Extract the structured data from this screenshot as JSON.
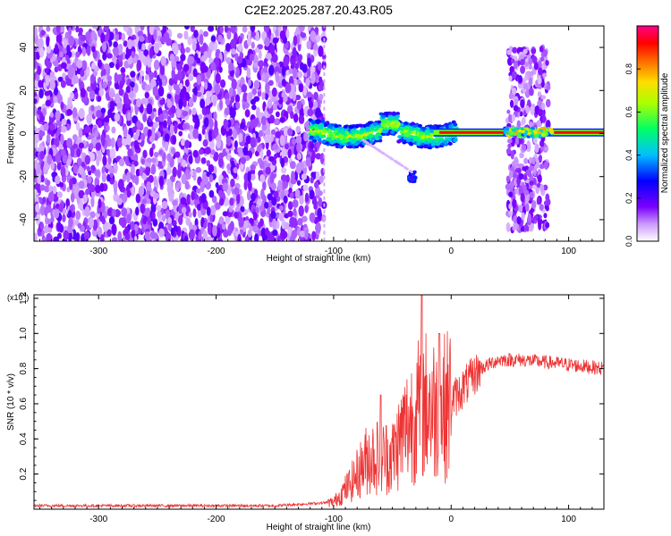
{
  "title": "C2E2.2025.287.20.43.R05",
  "chart_data": [
    {
      "type": "heatmap",
      "title": "C2E2.2025.287.20.43.R05",
      "xlabel": "Height of straight line (km)",
      "ylabel": "Frequency (Hz)",
      "xlim": [
        -355,
        130
      ],
      "ylim": [
        -50,
        50
      ],
      "x_ticks": [
        -300,
        -200,
        -100,
        0,
        100
      ],
      "y_ticks": [
        -40,
        -20,
        0,
        20,
        40
      ],
      "colorbar": {
        "label": "Normalized spectral amplitude",
        "range": [
          0.0,
          1.0
        ],
        "ticks": [
          "0.0",
          "0.2",
          "0.4",
          "0.6",
          "0.8"
        ],
        "colormap": "rainbow (white-purple-blue-cyan-green-yellow-orange-red-magenta)"
      },
      "features": [
        {
          "name": "noise",
          "x_range": [
            -355,
            -108
          ],
          "y_range": [
            -50,
            50
          ],
          "amplitude": 0.15
        },
        {
          "name": "carrier-wobble",
          "x_range": [
            -120,
            5
          ],
          "center_hz": 0,
          "amplitude": 0.5
        },
        {
          "name": "strong-carrier",
          "x_range": [
            5,
            130
          ],
          "center_hz": 0.5,
          "amplitude": 0.9
        },
        {
          "name": "spur",
          "x": -33,
          "y": -20,
          "amplitude": 0.3
        },
        {
          "name": "noise-band",
          "x_range": [
            48,
            83
          ],
          "y_range": [
            -45,
            40
          ],
          "amplitude": 0.12
        }
      ]
    },
    {
      "type": "line",
      "xlabel": "Height of straight line (km)",
      "ylabel": "SNR (10 * v/v)",
      "y_multiplier": "(x10",
      "y_multiplier_exp": "4",
      "xlim": [
        -355,
        130
      ],
      "ylim": [
        0,
        1.22
      ],
      "x_ticks": [
        -300,
        -200,
        -100,
        0,
        100
      ],
      "y_ticks": [
        "0.2",
        "0.4",
        "0.6",
        "0.8",
        "1.0",
        "1.2"
      ],
      "color": "#ee3333",
      "envelope": [
        {
          "x": -355,
          "y": 0.02
        },
        {
          "x": -150,
          "y": 0.02
        },
        {
          "x": -100,
          "y": 0.04
        },
        {
          "x": -85,
          "y": 0.15
        },
        {
          "x": -70,
          "y": 0.3
        },
        {
          "x": -50,
          "y": 0.3
        },
        {
          "x": -40,
          "y": 0.45
        },
        {
          "x": -30,
          "y": 0.55
        },
        {
          "x": -20,
          "y": 0.6
        },
        {
          "x": -10,
          "y": 0.55
        },
        {
          "x": 5,
          "y": 0.65
        },
        {
          "x": 25,
          "y": 0.8
        },
        {
          "x": 40,
          "y": 0.85
        },
        {
          "x": 60,
          "y": 0.85
        },
        {
          "x": 90,
          "y": 0.83
        },
        {
          "x": 130,
          "y": 0.8
        }
      ],
      "peaks": [
        {
          "x": -25,
          "y": 1.22
        },
        {
          "x": -10,
          "y": 1.0
        },
        {
          "x": -60,
          "y": 0.65
        }
      ]
    }
  ]
}
